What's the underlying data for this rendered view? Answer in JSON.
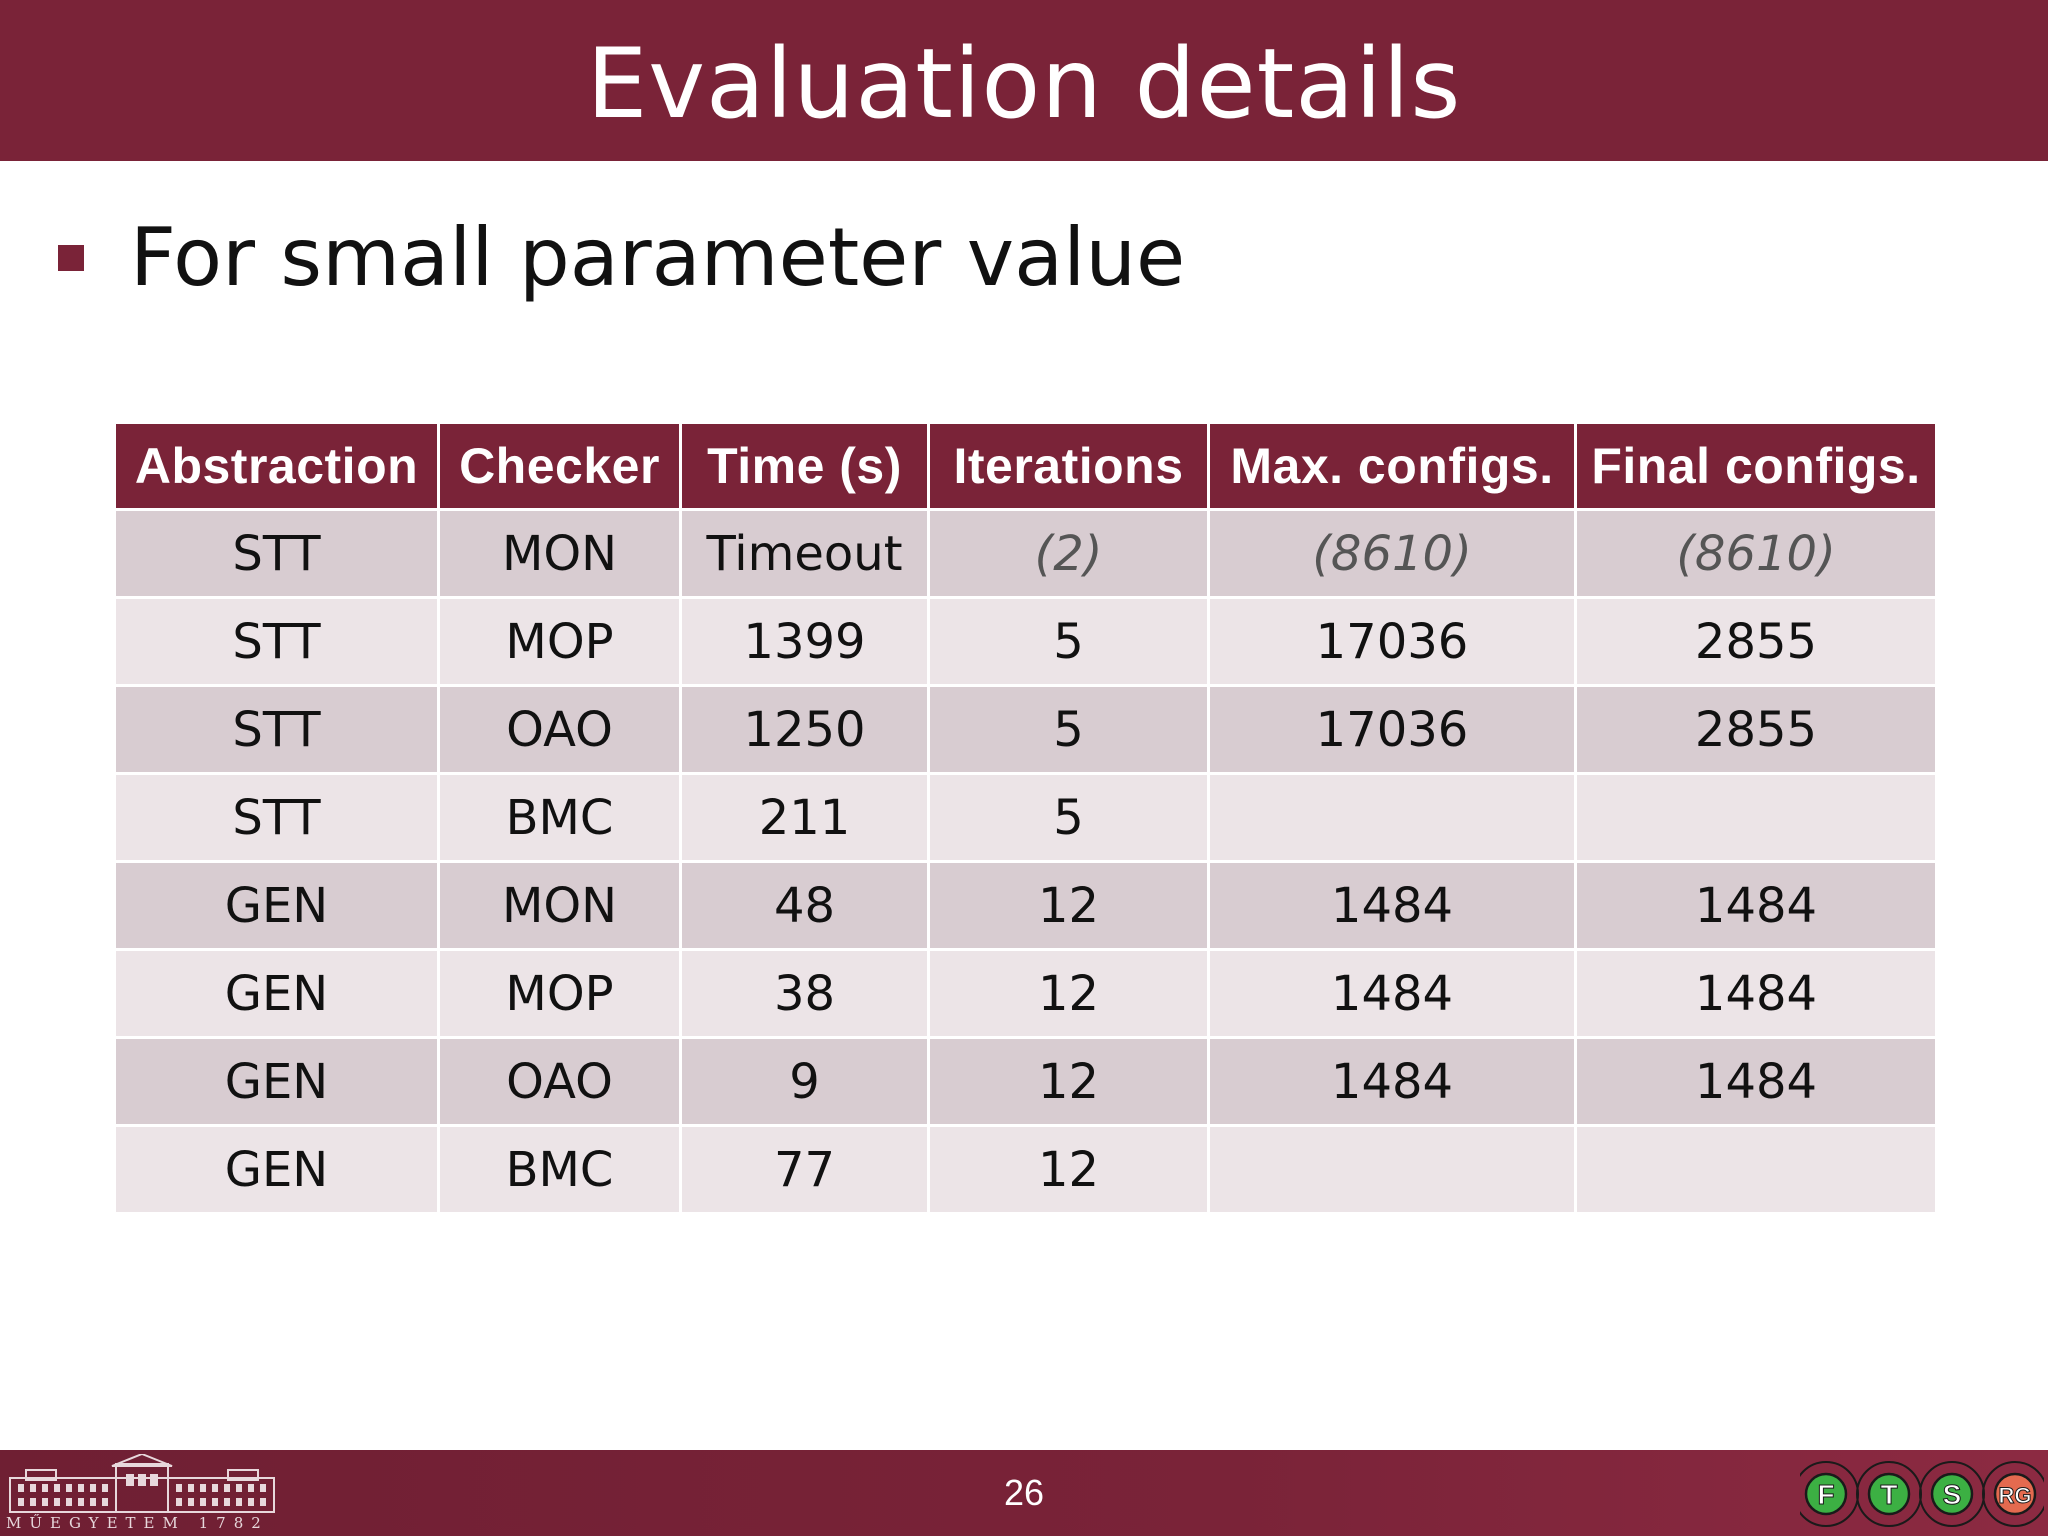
{
  "slide": {
    "title": "Evaluation details",
    "bullet": "For small parameter value",
    "page_number": "26"
  },
  "table": {
    "headers": [
      "Abstraction",
      "Checker",
      "Time (s)",
      "Iterations",
      "Max. configs.",
      "Final configs."
    ],
    "rows": [
      [
        "STT",
        "MON",
        "Timeout",
        "(2)",
        "(8610)",
        "(8610)"
      ],
      [
        "STT",
        "MOP",
        "1399",
        "5",
        "17036",
        "2855"
      ],
      [
        "STT",
        "OAO",
        "1250",
        "5",
        "17036",
        "2855"
      ],
      [
        "STT",
        "BMC",
        "211",
        "5",
        "",
        ""
      ],
      [
        "GEN",
        "MON",
        "48",
        "12",
        "1484",
        "1484"
      ],
      [
        "GEN",
        "MOP",
        "38",
        "12",
        "1484",
        "1484"
      ],
      [
        "GEN",
        "OAO",
        "9",
        "12",
        "1484",
        "1484"
      ],
      [
        "GEN",
        "BMC",
        "77",
        "12",
        "",
        ""
      ]
    ]
  },
  "footer": {
    "university_logo_text": "MŰEGYETEM 1782",
    "group_logo_letters": [
      "F",
      "T",
      "S",
      "RG"
    ]
  },
  "colors": {
    "brand": "#7a2338",
    "row_odd": "#d8ccd1",
    "row_even": "#ece4e7",
    "logo_green": "#3cb043"
  },
  "icons": {
    "bullet": "square-bullet-icon",
    "left_logo": "university-building-logo",
    "right_logo": "ftsrg-logo"
  }
}
